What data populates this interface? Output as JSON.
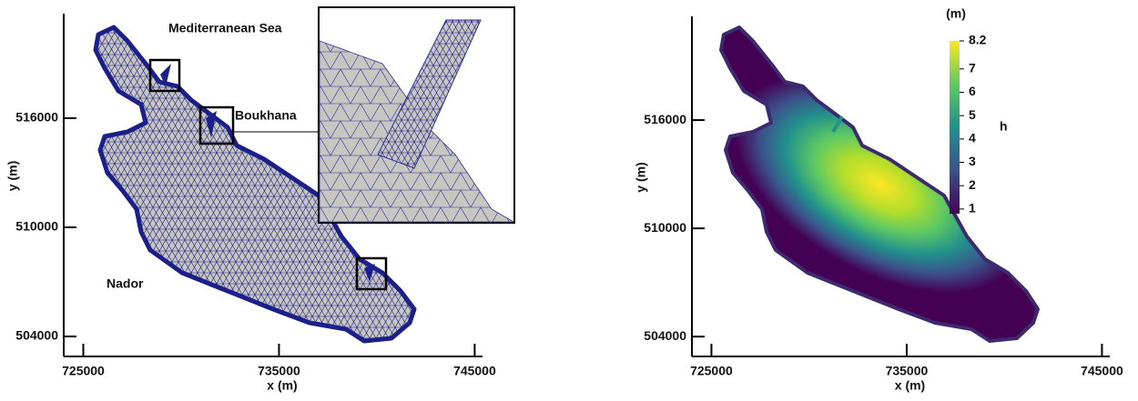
{
  "chart_data": [
    {
      "type": "mesh",
      "x_label": "x (m)",
      "y_label": "y (m)",
      "xlim": [
        724000,
        745400
      ],
      "xticks": [
        725000,
        735000,
        745000
      ],
      "ylim": [
        502900,
        521750
      ],
      "yticks": [
        504000,
        510000,
        516000
      ],
      "annotations": [
        "Mediterranean Sea",
        "Boukhana",
        "Nador"
      ]
    },
    {
      "type": "contour",
      "x_label": "x (m)",
      "y_label": "y (m)",
      "xlim": [
        724000,
        745400
      ],
      "xticks": [
        725000,
        735000,
        745000
      ],
      "ylim": [
        502900,
        521750
      ],
      "yticks": [
        504000,
        510000,
        516000
      ],
      "colorbar": {
        "label": "h",
        "unit": "(m)",
        "range": [
          0.8,
          8.2
        ],
        "ticks": [
          1,
          2,
          3,
          4,
          5,
          6,
          7,
          8.2
        ]
      }
    }
  ]
}
